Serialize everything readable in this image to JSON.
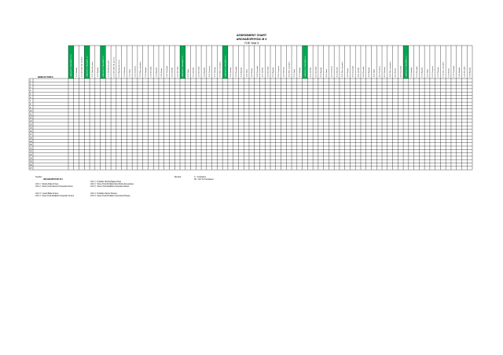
{
  "title": "ASSESSMENT CHART",
  "subtitle": "ARCHAEOPHYSIC M 3",
  "subtitle2": "YOE Year 5",
  "name_header": "NAME OF PUPILS",
  "row_numbers": [
    "1",
    "2",
    "3",
    "4",
    "5",
    "6",
    "7",
    "8",
    "9",
    "10",
    "11",
    "12",
    "13",
    "14",
    "15",
    "16",
    "17",
    "18",
    "19",
    "20",
    "21",
    "22",
    "23",
    "24",
    "25",
    "26",
    "27"
  ],
  "columns": [
    {
      "label": "LEARNING STANDARD 1.1.1",
      "highlight": true
    },
    {
      "label": "1.1.2 Identify",
      "highlight": false
    },
    {
      "label": "1.1.3 Describe the function",
      "highlight": false
    },
    {
      "label": "LEARNING STANDARD 1.2",
      "highlight": true
    },
    {
      "label": "1.2.1 State the ways",
      "highlight": false
    },
    {
      "label": "1.2.2 Explain",
      "highlight": false
    },
    {
      "label": "LEARNING STANDARD 2.1",
      "highlight": true
    },
    {
      "label": "2.1.1 Identify the parts",
      "highlight": false
    },
    {
      "label": "2.1.2 Describe the process",
      "highlight": false
    },
    {
      "label": "2.1.3 Explain the effect",
      "highlight": false
    },
    {
      "label": "2.1.4 Classify",
      "highlight": false
    },
    {
      "label": "2.2.1 State",
      "highlight": false
    },
    {
      "label": "2.2.2 Compare",
      "highlight": false
    },
    {
      "label": "2.2.3 Give examples",
      "highlight": false
    },
    {
      "label": "2.3.1 Identify",
      "highlight": false
    },
    {
      "label": "2.3.2 Describe",
      "highlight": false
    },
    {
      "label": "2.3.3 Explain",
      "highlight": false
    },
    {
      "label": "2.4.1 Relate",
      "highlight": false
    },
    {
      "label": "2.4.2 Conclude",
      "highlight": false
    },
    {
      "label": "2.5.1 Identify",
      "highlight": false
    },
    {
      "label": "2.5.2 Describe",
      "highlight": false
    },
    {
      "label": "LEARNING STANDARD 3.1",
      "highlight": true
    },
    {
      "label": "3.1.1 State",
      "highlight": false
    },
    {
      "label": "3.1.2 Identify",
      "highlight": false
    },
    {
      "label": "3.1.3 Describe",
      "highlight": false
    },
    {
      "label": "3.1.4 Explain",
      "highlight": false
    },
    {
      "label": "3.2.1 Compare",
      "highlight": false
    },
    {
      "label": "3.2.2 Classify",
      "highlight": false
    },
    {
      "label": "3.2.3 Give examples",
      "highlight": false
    },
    {
      "label": "LEARNING STANDARD 3.3",
      "highlight": true
    },
    {
      "label": "3.3.1 Identify",
      "highlight": false
    },
    {
      "label": "3.3.2 Describe",
      "highlight": false
    },
    {
      "label": "3.3.3 Explain",
      "highlight": false
    },
    {
      "label": "3.4.1 State",
      "highlight": false
    },
    {
      "label": "3.4.2 Relate",
      "highlight": false
    },
    {
      "label": "3.4.3 Conclude",
      "highlight": false
    },
    {
      "label": "3.5.1 Identify",
      "highlight": false
    },
    {
      "label": "3.5.2 Describe",
      "highlight": false
    },
    {
      "label": "3.5.3 Explain",
      "highlight": false
    },
    {
      "label": "3.6.1 Compare",
      "highlight": false
    },
    {
      "label": "3.6.2 Classify",
      "highlight": false
    },
    {
      "label": "3.6.3 Give examples",
      "highlight": false
    },
    {
      "label": "3.7.1 State",
      "highlight": false
    },
    {
      "label": "3.7.2 Identify",
      "highlight": false
    },
    {
      "label": "LEARNING STANDARD 4.1",
      "highlight": true
    },
    {
      "label": "4.1.1 Identify",
      "highlight": false
    },
    {
      "label": "4.1.2 Describe",
      "highlight": false
    },
    {
      "label": "4.1.3 Explain",
      "highlight": false
    },
    {
      "label": "4.2.1 State",
      "highlight": false
    },
    {
      "label": "4.2.2 Compare",
      "highlight": false
    },
    {
      "label": "4.2.3 Classify",
      "highlight": false
    },
    {
      "label": "4.3.1 Give examples",
      "highlight": false
    },
    {
      "label": "4.3.2 Relate",
      "highlight": false
    },
    {
      "label": "4.3.3 Conclude",
      "highlight": false
    },
    {
      "label": "4.4.1 Identify",
      "highlight": false
    },
    {
      "label": "4.4.2 Describe",
      "highlight": false
    },
    {
      "label": "4.4.3 Explain",
      "highlight": false
    },
    {
      "label": "4.5.1 State",
      "highlight": false
    },
    {
      "label": "4.5.2 Compare",
      "highlight": false
    },
    {
      "label": "4.5.3 Classify",
      "highlight": false
    },
    {
      "label": "4.6.1 Give examples",
      "highlight": false
    },
    {
      "label": "4.6.2 Relate",
      "highlight": false
    },
    {
      "label": "4.6.3 Conclude",
      "highlight": false
    },
    {
      "label": "LEARNING STANDARD 5.1",
      "highlight": true
    },
    {
      "label": "5.1.1 Identify",
      "highlight": false
    },
    {
      "label": "5.1.2 Describe",
      "highlight": false
    },
    {
      "label": "5.1.3 Explain",
      "highlight": false
    },
    {
      "label": "5.2.1 State",
      "highlight": false
    },
    {
      "label": "5.2.2 Compare",
      "highlight": false
    },
    {
      "label": "5.2.3 Classify",
      "highlight": false
    },
    {
      "label": "5.3.1 Give examples",
      "highlight": false
    },
    {
      "label": "5.3.2 Relate",
      "highlight": false
    },
    {
      "label": "5.3.3 Conclude",
      "highlight": false
    },
    {
      "label": "5.4.1 Identify",
      "highlight": false
    },
    {
      "label": "5.4.2 Describe",
      "highlight": false
    },
    {
      "label": "5.4.3 Explain",
      "highlight": false
    }
  ],
  "footer": {
    "teacher_label": "Teacher :",
    "archaeophysic_label": "ARCHAEOPHYSIC M 3",
    "legend_left": [
      "LOC 1 : Simple Flake Knives",
      "LOC 2 : Stone Tools Named Composite Knives",
      "LOC 3 : Linear Blade Knives",
      "LOC 4 : Stone Tools Modified Composite Knives"
    ],
    "legend_mid": [
      "LOC 1 : Portable Hunting Bags & Nets",
      "LOC 2 : Stone Tools Portable Nets Rocks Accessories",
      "LOC 3 : Stone Tools Modified Composite Panels",
      "LOC 4 : Portable Canine Shelves",
      "LOC 5 : Stone Tools Portable Constructed Panels"
    ],
    "remark_label": "Remark :",
    "remark_lines": [
      "C : Completed",
      "NC : Not Yet Completed"
    ]
  },
  "colors": {
    "highlight": "#00a651",
    "grid": "#000000"
  }
}
